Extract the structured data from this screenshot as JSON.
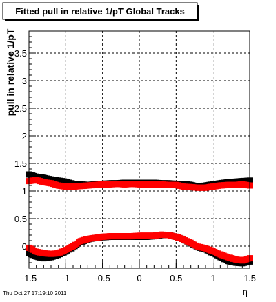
{
  "chart_data": {
    "type": "scatter",
    "title": "Fitted pull in relative 1/pT  Global Tracks",
    "xlabel": "η",
    "ylabel": "pull in relative 1/pT",
    "footer": "Thu Oct 27 17:19:10 2011",
    "xlim": [
      -1.5,
      1.5
    ],
    "ylim": [
      -0.4,
      3.9
    ],
    "grid": true,
    "x_ticks": [
      -1.5,
      -1,
      -0.5,
      0,
      0.5,
      1,
      1.5
    ],
    "x_tick_labels": [
      "-1.5",
      "-1",
      "-0.5",
      "0",
      "0.5",
      "1",
      "1.5"
    ],
    "y_ticks": [
      0,
      0.5,
      1,
      1.5,
      2,
      2.5,
      3,
      3.5
    ],
    "y_tick_labels": [
      "0",
      "0.5",
      "1",
      "1.5",
      "2",
      "2.5",
      "3",
      "3.5"
    ],
    "series": [
      {
        "color": "#000000",
        "marker": "square",
        "x": [
          -1.5,
          -1.4,
          -1.3,
          -1.2,
          -1.1,
          -1.0,
          -0.9,
          -0.8,
          -0.7,
          -0.6,
          -0.5,
          -0.4,
          -0.3,
          -0.2,
          -0.1,
          0.0,
          0.1,
          0.2,
          0.3,
          0.4,
          0.5,
          0.6,
          0.7,
          0.8,
          0.9,
          1.0,
          1.1,
          1.2,
          1.3,
          1.4,
          1.5
        ],
        "values": [
          1.3,
          1.26,
          1.24,
          1.21,
          1.19,
          1.17,
          1.13,
          1.12,
          1.11,
          1.12,
          1.13,
          1.14,
          1.14,
          1.15,
          1.15,
          1.15,
          1.15,
          1.15,
          1.14,
          1.14,
          1.13,
          1.13,
          1.11,
          1.08,
          1.1,
          1.12,
          1.14,
          1.16,
          1.17,
          1.18,
          1.19
        ]
      },
      {
        "color": "#ff0000",
        "marker": "square",
        "x": [
          -1.5,
          -1.4,
          -1.3,
          -1.2,
          -1.1,
          -1.0,
          -0.9,
          -0.8,
          -0.7,
          -0.6,
          -0.5,
          -0.4,
          -0.3,
          -0.2,
          -0.1,
          0.0,
          0.1,
          0.2,
          0.3,
          0.4,
          0.5,
          0.6,
          0.7,
          0.8,
          0.9,
          1.0,
          1.1,
          1.2,
          1.3,
          1.4,
          1.5
        ],
        "values": [
          1.18,
          1.2,
          1.16,
          1.14,
          1.1,
          1.08,
          1.08,
          1.09,
          1.1,
          1.11,
          1.12,
          1.12,
          1.13,
          1.12,
          1.13,
          1.12,
          1.12,
          1.12,
          1.12,
          1.11,
          1.11,
          1.08,
          1.07,
          1.06,
          1.06,
          1.08,
          1.1,
          1.11,
          1.11,
          1.12,
          1.1
        ]
      },
      {
        "color": "#000000",
        "marker": "square",
        "x": [
          -1.5,
          -1.4,
          -1.3,
          -1.2,
          -1.1,
          -1.0,
          -0.9,
          -0.8,
          -0.7,
          -0.6,
          -0.5,
          -0.4,
          -0.3,
          -0.2,
          -0.1,
          0.0,
          0.1,
          0.2,
          0.3,
          0.4,
          0.5,
          0.6,
          0.7,
          0.8,
          0.9,
          1.0,
          1.1,
          1.2,
          1.3,
          1.4,
          1.5
        ],
        "values": [
          -0.13,
          -0.19,
          -0.22,
          -0.2,
          -0.16,
          -0.1,
          -0.02,
          0.07,
          0.12,
          0.15,
          0.16,
          0.17,
          0.17,
          0.17,
          0.17,
          0.17,
          0.17,
          0.18,
          0.2,
          0.2,
          0.17,
          0.12,
          0.05,
          -0.02,
          -0.06,
          -0.13,
          -0.2,
          -0.27,
          -0.3,
          -0.31,
          -0.28
        ]
      },
      {
        "color": "#ff0000",
        "marker": "square",
        "x": [
          -1.5,
          -1.4,
          -1.3,
          -1.2,
          -1.1,
          -1.0,
          -0.9,
          -0.8,
          -0.7,
          -0.6,
          -0.5,
          -0.4,
          -0.3,
          -0.2,
          -0.1,
          0.0,
          0.1,
          0.2,
          0.3,
          0.4,
          0.5,
          0.6,
          0.7,
          0.8,
          0.9,
          1.0,
          1.1,
          1.2,
          1.3,
          1.4,
          1.5
        ],
        "values": [
          -0.03,
          -0.1,
          -0.13,
          -0.14,
          -0.13,
          -0.07,
          0.0,
          0.09,
          0.13,
          0.15,
          0.17,
          0.18,
          0.18,
          0.18,
          0.18,
          0.19,
          0.19,
          0.19,
          0.21,
          0.2,
          0.17,
          0.12,
          0.06,
          -0.01,
          -0.04,
          -0.09,
          -0.15,
          -0.2,
          -0.24,
          -0.26,
          -0.22
        ]
      }
    ]
  }
}
